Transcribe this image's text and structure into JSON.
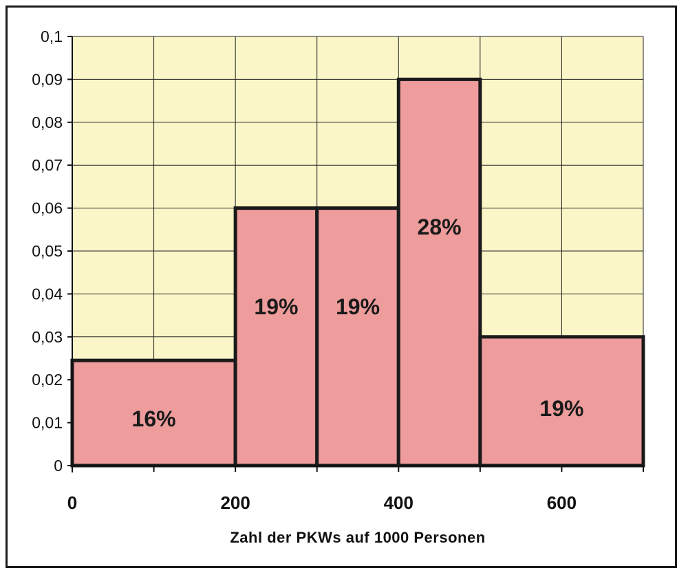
{
  "chart_data": {
    "type": "bar",
    "subtype": "histogram",
    "title": "",
    "xlabel": "Zahl der PKWs auf 1000 Personen",
    "ylabel": "",
    "xlim": [
      0,
      700
    ],
    "ylim": [
      0,
      0.1
    ],
    "grid": true,
    "legend": "none",
    "x_ticks": [
      {
        "value": 0,
        "label": "0"
      },
      {
        "value": 200,
        "label": "200"
      },
      {
        "value": 400,
        "label": "400"
      },
      {
        "value": 600,
        "label": "600"
      }
    ],
    "y_ticks": [
      {
        "value": 0,
        "label": "0"
      },
      {
        "value": 0.01,
        "label": "0,01"
      },
      {
        "value": 0.02,
        "label": "0,02"
      },
      {
        "value": 0.03,
        "label": "0,03"
      },
      {
        "value": 0.04,
        "label": "0,04"
      },
      {
        "value": 0.05,
        "label": "0,05"
      },
      {
        "value": 0.06,
        "label": "0,06"
      },
      {
        "value": 0.07,
        "label": "0,07"
      },
      {
        "value": 0.08,
        "label": "0,08"
      },
      {
        "value": 0.09,
        "label": "0,09"
      },
      {
        "value": 0.1,
        "label": "0,1"
      }
    ],
    "bins": [
      {
        "start": 0,
        "end": 200,
        "value": 0.0245,
        "label": "16%"
      },
      {
        "start": 200,
        "end": 300,
        "value": 0.06,
        "label": "19%"
      },
      {
        "start": 300,
        "end": 400,
        "value": 0.06,
        "label": "19%"
      },
      {
        "start": 400,
        "end": 500,
        "value": 0.09,
        "label": "28%"
      },
      {
        "start": 500,
        "end": 700,
        "value": 0.03,
        "label": "19%"
      }
    ],
    "colors": {
      "plot_background": "#faf6c8",
      "bar_fill": "#ee9c9c",
      "bar_stroke": "#1a1a1a",
      "grid": "#222222"
    }
  }
}
